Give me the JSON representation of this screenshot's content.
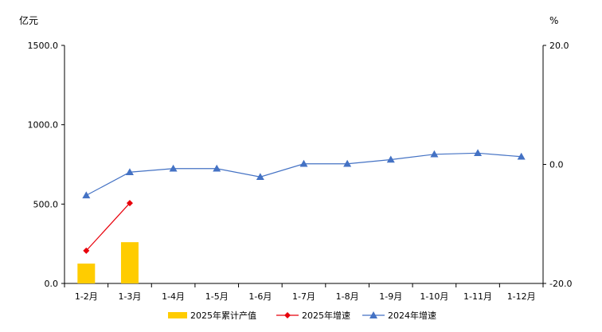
{
  "chart_data": {
    "type": "bar+line",
    "title": "",
    "categories": [
      "1-2月",
      "1-3月",
      "1-4月",
      "1-5月",
      "1-6月",
      "1-7月",
      "1-8月",
      "1-9月",
      "1-10月",
      "1-11月",
      "1-12月"
    ],
    "left_axis": {
      "unit": "亿元",
      "ylim": [
        0,
        1500
      ],
      "ticks": [
        "0.0",
        "500.0",
        "1000.0",
        "1500.0"
      ]
    },
    "right_axis": {
      "unit": "%",
      "ylim": [
        -20,
        20
      ],
      "ticks": [
        "-20.0",
        "0.0",
        "20.0"
      ]
    },
    "series": [
      {
        "name": "2025年累计产值",
        "type": "bar",
        "axis": "left",
        "color": "#FFCC00",
        "values": [
          125,
          260,
          null,
          null,
          null,
          null,
          null,
          null,
          null,
          null,
          null
        ]
      },
      {
        "name": "2025年增速",
        "type": "line",
        "axis": "right",
        "color": "#E8000B",
        "marker": "diamond",
        "values": [
          -14.5,
          -6.5,
          null,
          null,
          null,
          null,
          null,
          null,
          null,
          null,
          null
        ]
      },
      {
        "name": "2024年增速",
        "type": "line",
        "axis": "right",
        "color": "#4472C4",
        "marker": "triangle",
        "values": [
          -5.2,
          -1.3,
          -0.7,
          -0.7,
          -2.1,
          0.1,
          0.1,
          0.8,
          1.7,
          1.9,
          1.3
        ]
      }
    ],
    "legend_position": "bottom",
    "grid": false
  }
}
